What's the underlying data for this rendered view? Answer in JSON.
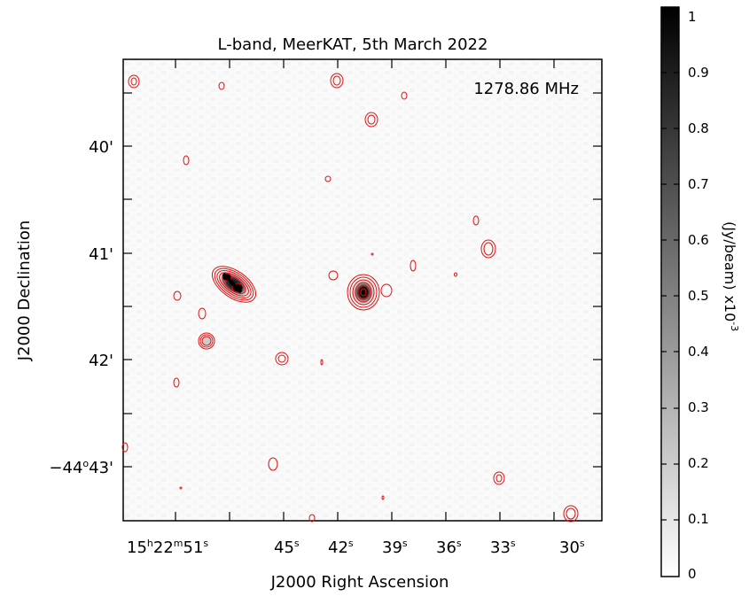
{
  "image": {
    "title": "L-band, MeerKAT, 5th March 2022",
    "frequency_label": "1278.86 MHz",
    "x_axis_label": "J2000 Right Ascension",
    "y_axis_label": "J2000 Declination",
    "ra_ticks": [
      {
        "h": "15",
        "m": "22",
        "s": "51"
      },
      {
        "s": "45"
      },
      {
        "s": "42"
      },
      {
        "s": "39"
      },
      {
        "s": "36"
      },
      {
        "s": "33"
      },
      {
        "s": "30"
      }
    ],
    "dec_ticks": [
      {
        "label": "40'"
      },
      {
        "label": "41'"
      },
      {
        "label": "42'"
      },
      {
        "deg": "−44",
        "arcmin": "43'"
      }
    ],
    "colorbar": {
      "label": "(Jy/beam)",
      "scale": "x10",
      "exponent": "-3",
      "ticks": [
        "0",
        "0.1",
        "0.2",
        "0.3",
        "0.4",
        "0.5",
        "0.6",
        "0.7",
        "0.8",
        "0.9",
        "1"
      ],
      "colormap": "grayscale"
    },
    "contour_color": "#e01010"
  }
}
